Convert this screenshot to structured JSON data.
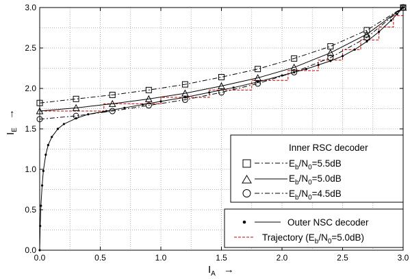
{
  "chart_data": {
    "type": "line",
    "xlabel": {
      "main": "I",
      "sub": "A",
      "arrow": "→"
    },
    "ylabel": {
      "main": "I",
      "sub": "E",
      "arrow": "→"
    },
    "xlim": [
      0,
      3
    ],
    "ylim": [
      0,
      3
    ],
    "xticks": [
      "0.0",
      "0.5",
      "1.0",
      "1.5",
      "2.0",
      "2.5",
      "3.0"
    ],
    "yticks": [
      "0.0",
      "0.5",
      "1.0",
      "1.5",
      "2.0",
      "2.5",
      "3.0"
    ],
    "grid": true,
    "legend_placement": "bottom-right",
    "legend_inner_title": "Inner RSC decoder",
    "series": [
      {
        "name": "E_b/N_0=5.5dB",
        "legend_main": "E",
        "legend_sub1": "b",
        "legend_mid": "/N",
        "legend_sub2": "0",
        "legend_rest": "=5.5dB",
        "marker": "square",
        "dash": "dashdot",
        "x": [
          0,
          0.3,
          0.6,
          0.9,
          1.2,
          1.5,
          1.8,
          2.1,
          2.4,
          2.7,
          3.0
        ],
        "y": [
          1.82,
          1.87,
          1.92,
          1.98,
          2.05,
          2.14,
          2.24,
          2.37,
          2.52,
          2.72,
          3.0
        ]
      },
      {
        "name": "E_b/N_0=5.0dB",
        "legend_main": "E",
        "legend_sub1": "b",
        "legend_mid": "/N",
        "legend_sub2": "0",
        "legend_rest": "=5.0dB",
        "marker": "triangle",
        "dash": "solid",
        "x": [
          0,
          0.3,
          0.6,
          0.9,
          1.2,
          1.5,
          1.8,
          2.1,
          2.4,
          2.7,
          3.0
        ],
        "y": [
          1.72,
          1.76,
          1.81,
          1.87,
          1.94,
          2.03,
          2.13,
          2.26,
          2.44,
          2.67,
          3.0
        ]
      },
      {
        "name": "E_b/N_0=4.5dB",
        "legend_main": "E",
        "legend_sub1": "b",
        "legend_mid": "/N",
        "legend_sub2": "0",
        "legend_rest": "=4.5dB",
        "marker": "circle",
        "dash": "dashdot",
        "x": [
          0,
          0.3,
          0.6,
          0.9,
          1.2,
          1.5,
          1.8,
          2.1,
          2.4,
          2.7,
          3.0
        ],
        "y": [
          1.62,
          1.66,
          1.72,
          1.79,
          1.86,
          1.95,
          2.06,
          2.2,
          2.38,
          2.63,
          3.0
        ]
      },
      {
        "name": "Outer NSC decoder",
        "marker": "dot",
        "dash": "solid",
        "x": [
          0.0,
          0.004,
          0.01,
          0.02,
          0.03,
          0.05,
          0.07,
          0.1,
          0.15,
          0.2,
          0.3,
          0.4,
          0.55,
          0.7,
          0.85,
          1.0,
          1.2,
          1.4,
          1.6,
          1.8,
          2.0,
          2.1,
          2.2,
          2.3,
          2.4,
          2.5,
          2.6,
          2.7,
          2.8,
          2.9,
          2.95,
          3.0
        ],
        "y": [
          0.0,
          0.3,
          0.55,
          0.8,
          0.98,
          1.18,
          1.3,
          1.4,
          1.5,
          1.56,
          1.63,
          1.68,
          1.72,
          1.76,
          1.8,
          1.84,
          1.89,
          1.95,
          2.01,
          2.08,
          2.16,
          2.2,
          2.24,
          2.29,
          2.34,
          2.4,
          2.48,
          2.58,
          2.7,
          2.84,
          2.92,
          3.0
        ]
      }
    ],
    "trajectory": {
      "name": "Trajectory (E_b/N_0=5.0dB)",
      "legend_main": "Trajectory (E",
      "legend_sub1": "b",
      "legend_mid": "/N",
      "legend_sub2": "0",
      "legend_rest": "=5.0dB)",
      "color": "#cc0000",
      "x": [
        0,
        0.0,
        0.53,
        0.53,
        1.0,
        1.0,
        1.4,
        1.4,
        1.75,
        1.75,
        2.05,
        2.05,
        2.3,
        2.3,
        2.5,
        2.5,
        2.65,
        2.65,
        2.8,
        2.8,
        2.92,
        2.92,
        3.0
      ],
      "y": [
        0,
        1.72,
        1.72,
        1.81,
        1.81,
        1.89,
        1.89,
        1.98,
        1.98,
        2.1,
        2.1,
        2.22,
        2.22,
        2.35,
        2.35,
        2.48,
        2.48,
        2.6,
        2.6,
        2.76,
        2.76,
        2.9,
        2.9
      ]
    }
  }
}
